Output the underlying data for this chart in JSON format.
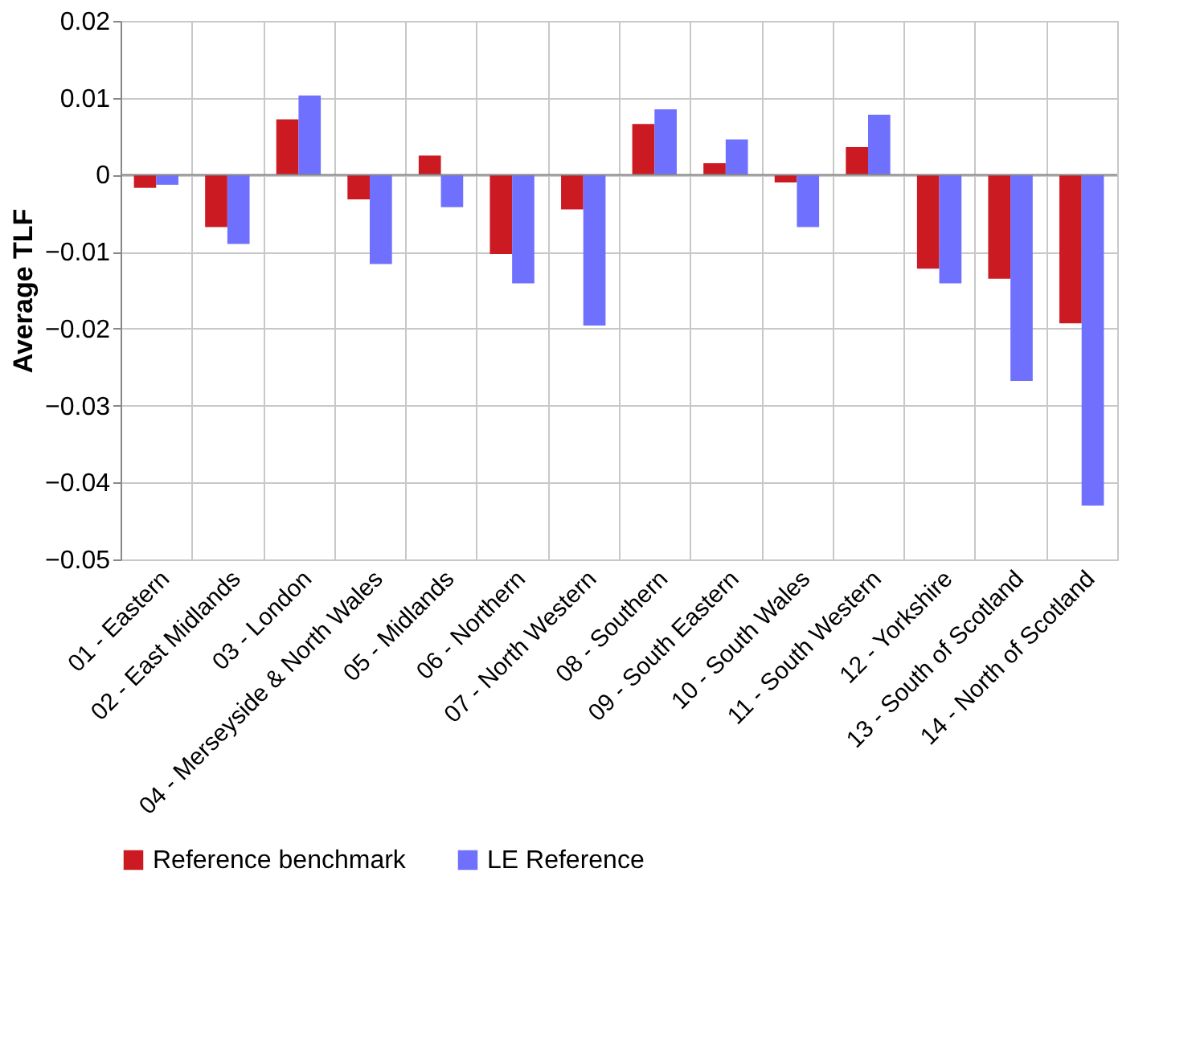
{
  "chart_data": {
    "type": "bar",
    "ylabel": "Average TLF",
    "categories": [
      "01 - Eastern",
      "02 - East Midlands",
      "03 - London",
      "04 - Merseyside & North Wales",
      "05 - Midlands",
      "06 - Northern",
      "07 - North Western",
      "08 - Southern",
      "09 - South Eastern",
      "10 - South Wales",
      "11 - South Western",
      "12 - Yorkshire",
      "13 - South of Scotland",
      "14 - North of Scotland"
    ],
    "series": [
      {
        "name": "Reference benchmark",
        "color": "#cc1a22",
        "values": [
          -0.0017,
          -0.0068,
          0.0072,
          -0.0032,
          0.0025,
          -0.0103,
          -0.0045,
          0.0066,
          0.0015,
          -0.001,
          0.0036,
          -0.0122,
          -0.0135,
          -0.0193
        ]
      },
      {
        "name": "LE Reference",
        "color": "#7070ff",
        "values": [
          -0.0013,
          -0.009,
          0.0103,
          -0.0116,
          -0.0042,
          -0.0141,
          -0.0196,
          0.0085,
          0.0046,
          -0.0068,
          0.0078,
          -0.0141,
          -0.0268,
          -0.043
        ]
      }
    ],
    "ylim": [
      -0.05,
      0.02
    ],
    "yticks": [
      -0.05,
      -0.04,
      -0.03,
      -0.02,
      -0.01,
      0,
      0.01,
      0.02
    ],
    "grid": true,
    "legend": "bottom"
  }
}
